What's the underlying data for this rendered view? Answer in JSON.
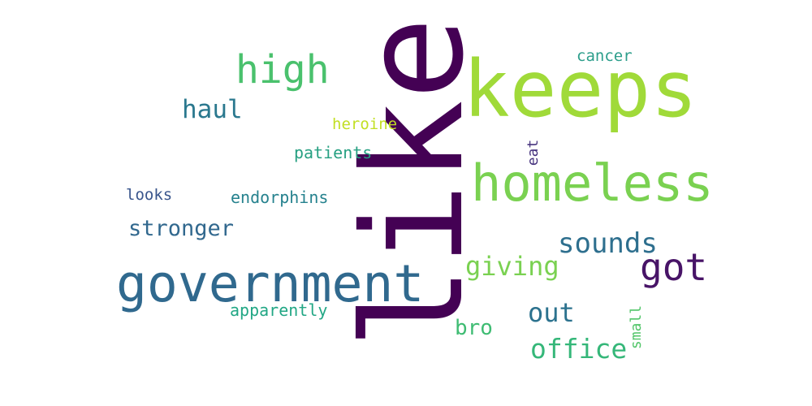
{
  "words": [
    {
      "text": "like",
      "color": "#440154"
    },
    {
      "text": "keeps",
      "color": "#a0da39"
    },
    {
      "text": "homeless",
      "color": "#7ad151"
    },
    {
      "text": "government",
      "color": "#30698e"
    },
    {
      "text": "high",
      "color": "#4ac16d"
    },
    {
      "text": "got",
      "color": "#481467"
    },
    {
      "text": "sounds",
      "color": "#2e6f8e"
    },
    {
      "text": "giving",
      "color": "#7ad151"
    },
    {
      "text": "haul",
      "color": "#2a788e"
    },
    {
      "text": "stronger",
      "color": "#31688e"
    },
    {
      "text": "out",
      "color": "#2c728e"
    },
    {
      "text": "office",
      "color": "#35b779"
    },
    {
      "text": "bro",
      "color": "#3fbc73"
    },
    {
      "text": "cancer",
      "color": "#2c9e8b"
    },
    {
      "text": "heroine",
      "color": "#c2df23"
    },
    {
      "text": "patients",
      "color": "#27a082"
    },
    {
      "text": "eat",
      "color": "#46337e"
    },
    {
      "text": "looks",
      "color": "#39558c"
    },
    {
      "text": "endorphins",
      "color": "#26828e"
    },
    {
      "text": "apparently",
      "color": "#22a785"
    },
    {
      "text": "small",
      "color": "#52c569"
    }
  ]
}
